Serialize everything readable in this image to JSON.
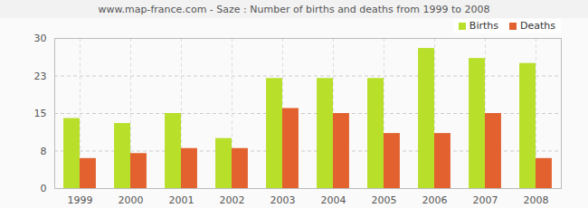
{
  "chart_data": {
    "type": "bar",
    "title": "www.map-france.com - Saze : Number of births and deaths from 1999 to 2008",
    "categories": [
      "1999",
      "2000",
      "2001",
      "2002",
      "2003",
      "2004",
      "2005",
      "2006",
      "2007",
      "2008"
    ],
    "series": [
      {
        "name": "Births",
        "color": "#b8df2a",
        "values": [
          14,
          13,
          15,
          10,
          22,
          22,
          22,
          28,
          26,
          25
        ]
      },
      {
        "name": "Deaths",
        "color": "#e2612e",
        "values": [
          6,
          7,
          8,
          8,
          16,
          15,
          11,
          11,
          15,
          6
        ]
      }
    ],
    "ylim": [
      0,
      30
    ],
    "yticks": [
      0,
      {
        "value": 7.5,
        "label": "8"
      },
      15,
      {
        "value": 22.5,
        "label": "23"
      },
      30
    ],
    "grid": true,
    "legend": "top-right"
  }
}
